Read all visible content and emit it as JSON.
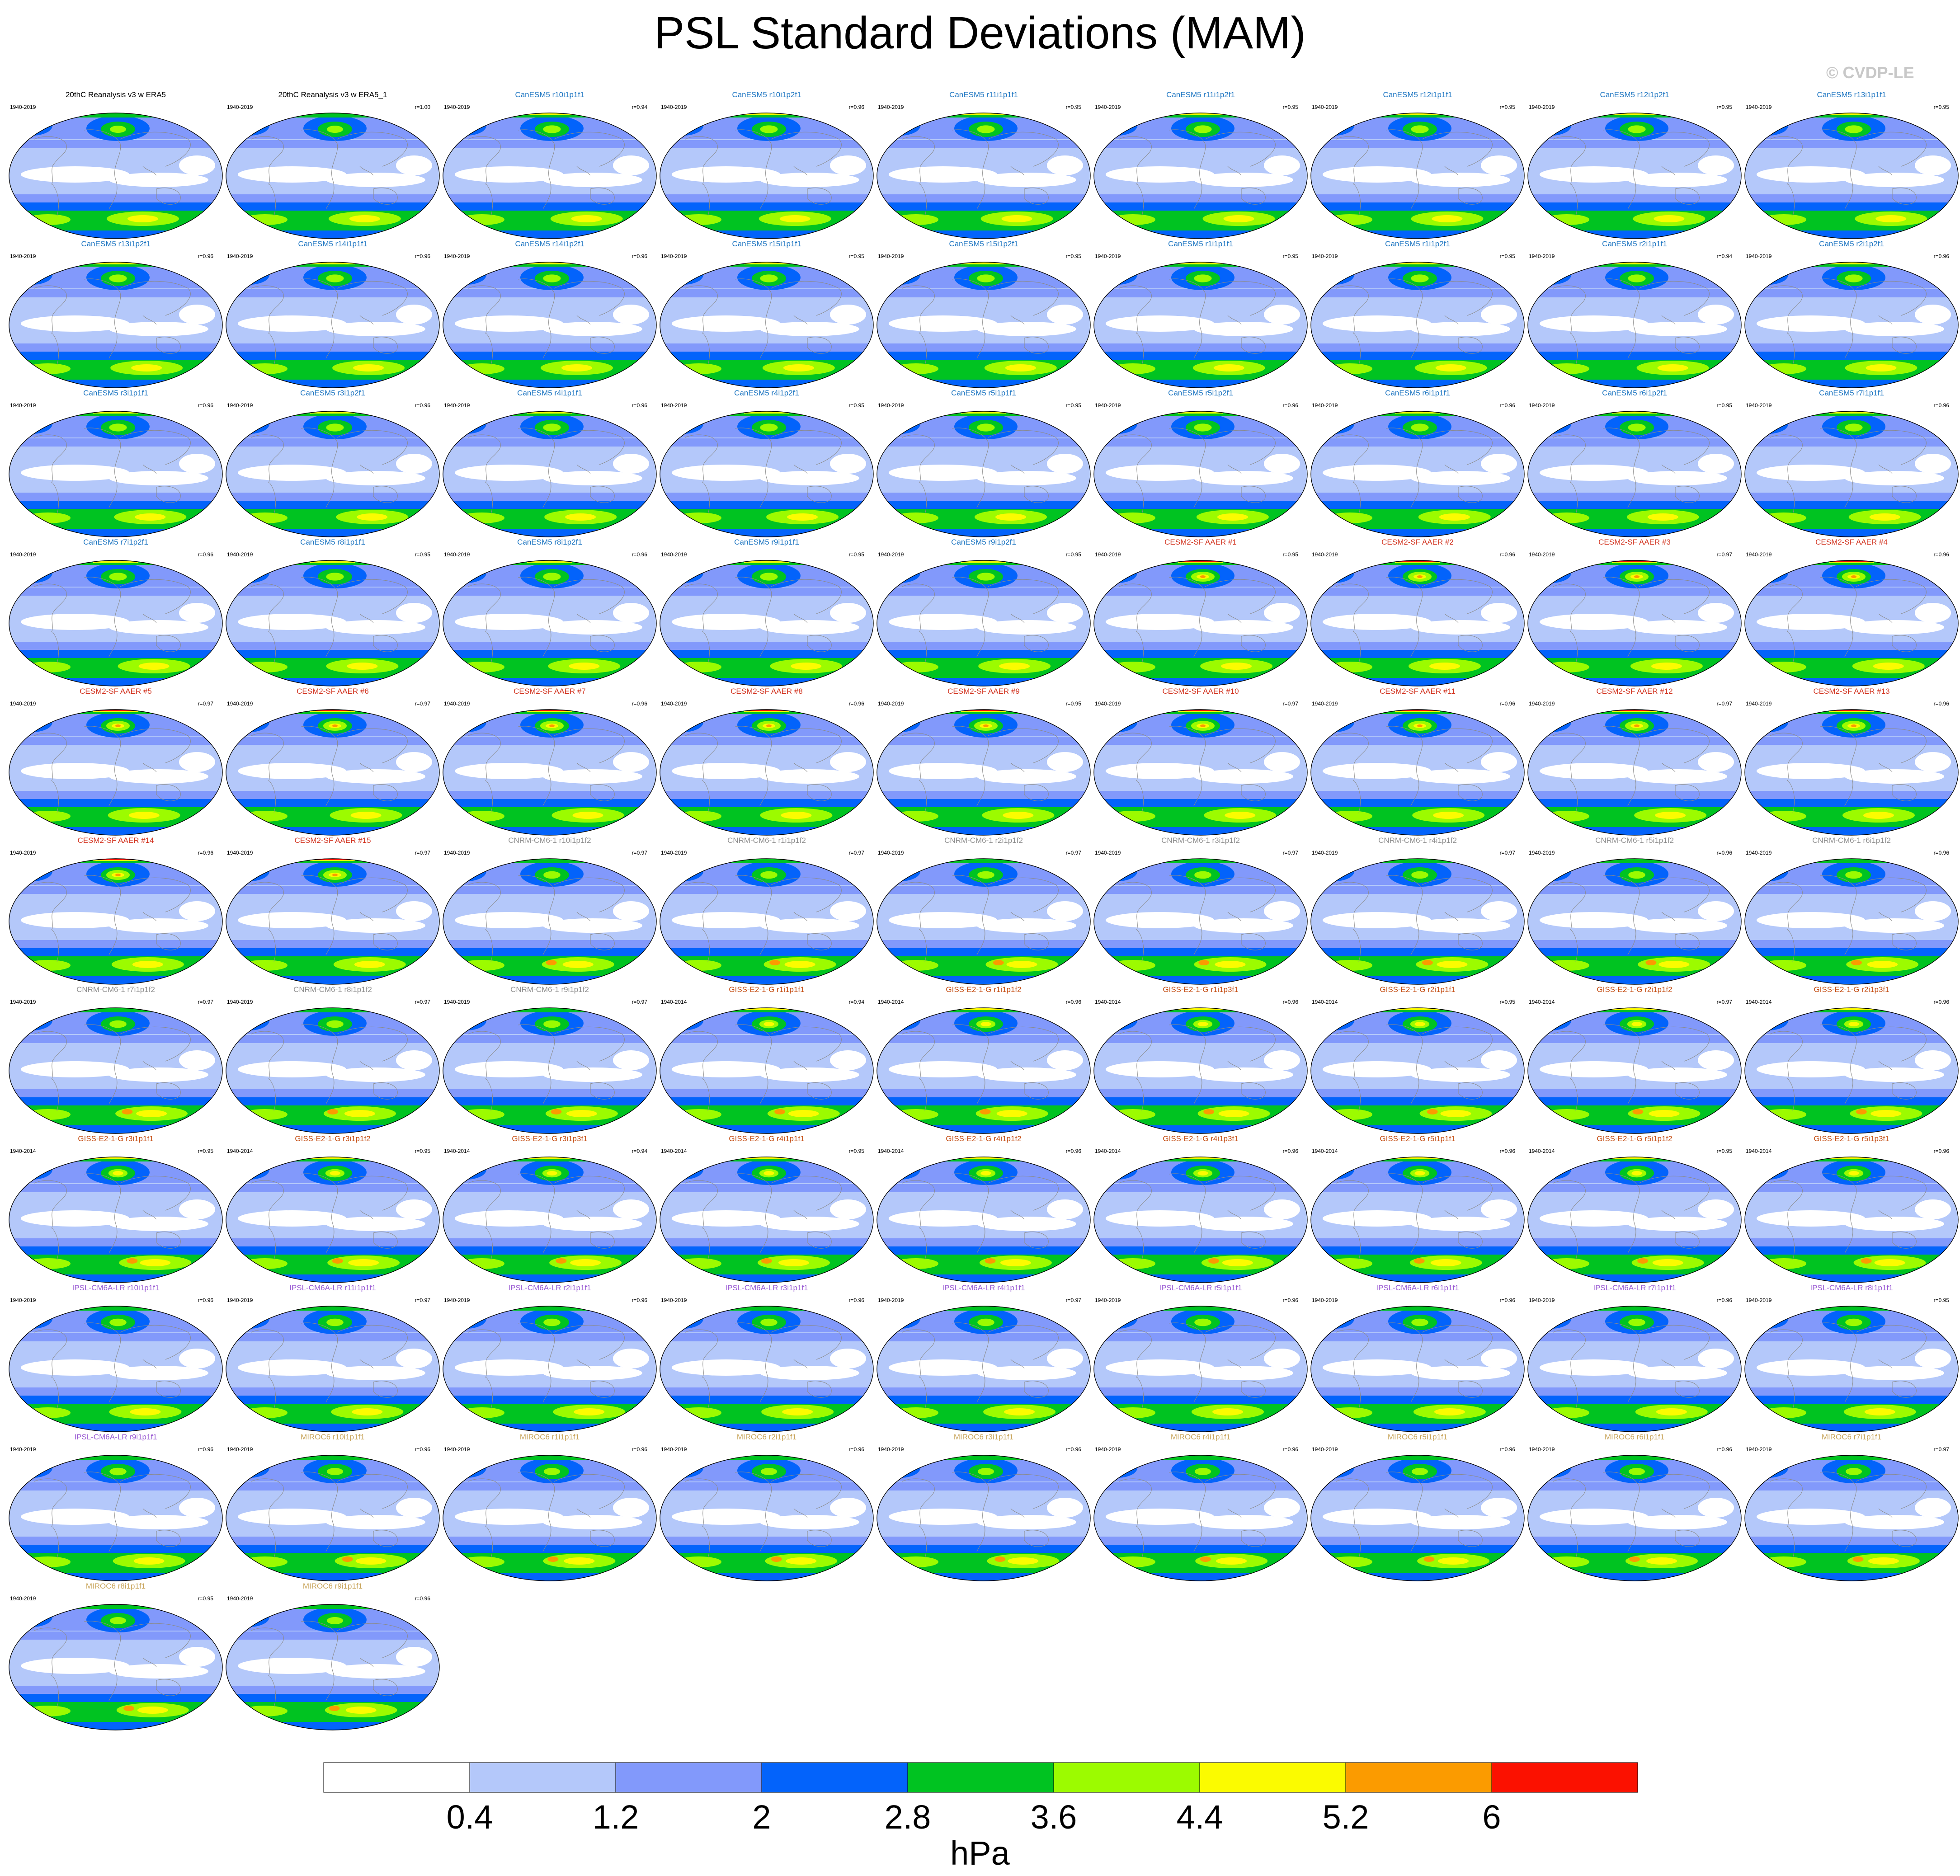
{
  "figure": {
    "title": "PSL Standard Deviations (MAM)",
    "copyright": "© CVDP-LE"
  },
  "colors": {
    "levels": [
      "#ffffff",
      "#b4c8fa",
      "#8299fb",
      "#0363fb",
      "#00c321",
      "#9cfb00",
      "#fbfb00",
      "#fb9b00",
      "#fb1100"
    ],
    "ocean_fallback": "#b4c8fa",
    "outline": "#8a8a8a",
    "family_colors": {
      "obs": "#000000",
      "CanESM5": "#1e76c2",
      "CESM2-SF": "#d2331f",
      "CNRM-CM6-1": "#8f8f8f",
      "GISS-E2-1-G": "#c44d12",
      "IPSL-CM6A-LR": "#9a5bd3",
      "MIROC6": "#c8a45a"
    }
  },
  "chart_data": {
    "type": "map-panels",
    "units": "hPa",
    "colorbar": {
      "ticks": [
        0.4,
        1.2,
        2,
        2.8,
        3.6,
        4.4,
        5.2,
        6
      ],
      "tick_labels": [
        "0.4",
        "1.2",
        "2",
        "2.8",
        "3.6",
        "4.4",
        "5.2",
        "6"
      ],
      "label": "hPa"
    },
    "panels": [
      {
        "title": "20thC Reanalysis v3 w ERA5",
        "family": "obs",
        "period": "1940-2019",
        "r": ""
      },
      {
        "title": "20thC Reanalysis v3 w ERA5_1",
        "family": "obs",
        "period": "1940-2019",
        "r": "r=1.00"
      },
      {
        "title": "CanESM5 r10i1p1f1",
        "family": "CanESM5",
        "period": "1940-2019",
        "r": "r=0.94"
      },
      {
        "title": "CanESM5 r10i1p2f1",
        "family": "CanESM5",
        "period": "1940-2019",
        "r": "r=0.96"
      },
      {
        "title": "CanESM5 r11i1p1f1",
        "family": "CanESM5",
        "period": "1940-2019",
        "r": "r=0.95"
      },
      {
        "title": "CanESM5 r11i1p2f1",
        "family": "CanESM5",
        "period": "1940-2019",
        "r": "r=0.95"
      },
      {
        "title": "CanESM5 r12i1p1f1",
        "family": "CanESM5",
        "period": "1940-2019",
        "r": "r=0.95"
      },
      {
        "title": "CanESM5 r12i1p2f1",
        "family": "CanESM5",
        "period": "1940-2019",
        "r": "r=0.95"
      },
      {
        "title": "CanESM5 r13i1p1f1",
        "family": "CanESM5",
        "period": "1940-2019",
        "r": "r=0.95"
      },
      {
        "title": "CanESM5 r13i1p2f1",
        "family": "CanESM5",
        "period": "1940-2019",
        "r": "r=0.96"
      },
      {
        "title": "CanESM5 r14i1p1f1",
        "family": "CanESM5",
        "period": "1940-2019",
        "r": "r=0.96"
      },
      {
        "title": "CanESM5 r14i1p2f1",
        "family": "CanESM5",
        "period": "1940-2019",
        "r": "r=0.96"
      },
      {
        "title": "CanESM5 r15i1p1f1",
        "family": "CanESM5",
        "period": "1940-2019",
        "r": "r=0.95"
      },
      {
        "title": "CanESM5 r15i1p2f1",
        "family": "CanESM5",
        "period": "1940-2019",
        "r": "r=0.95"
      },
      {
        "title": "CanESM5 r1i1p1f1",
        "family": "CanESM5",
        "period": "1940-2019",
        "r": "r=0.95"
      },
      {
        "title": "CanESM5 r1i1p2f1",
        "family": "CanESM5",
        "period": "1940-2019",
        "r": "r=0.95"
      },
      {
        "title": "CanESM5 r2i1p1f1",
        "family": "CanESM5",
        "period": "1940-2019",
        "r": "r=0.94"
      },
      {
        "title": "CanESM5 r2i1p2f1",
        "family": "CanESM5",
        "period": "1940-2019",
        "r": "r=0.96"
      },
      {
        "title": "CanESM5 r3i1p1f1",
        "family": "CanESM5",
        "period": "1940-2019",
        "r": "r=0.96"
      },
      {
        "title": "CanESM5 r3i1p2f1",
        "family": "CanESM5",
        "period": "1940-2019",
        "r": "r=0.96"
      },
      {
        "title": "CanESM5 r4i1p1f1",
        "family": "CanESM5",
        "period": "1940-2019",
        "r": "r=0.96"
      },
      {
        "title": "CanESM5 r4i1p2f1",
        "family": "CanESM5",
        "period": "1940-2019",
        "r": "r=0.95"
      },
      {
        "title": "CanESM5 r5i1p1f1",
        "family": "CanESM5",
        "period": "1940-2019",
        "r": "r=0.95"
      },
      {
        "title": "CanESM5 r5i1p2f1",
        "family": "CanESM5",
        "period": "1940-2019",
        "r": "r=0.96"
      },
      {
        "title": "CanESM5 r6i1p1f1",
        "family": "CanESM5",
        "period": "1940-2019",
        "r": "r=0.96"
      },
      {
        "title": "CanESM5 r6i1p2f1",
        "family": "CanESM5",
        "period": "1940-2019",
        "r": "r=0.95"
      },
      {
        "title": "CanESM5 r7i1p1f1",
        "family": "CanESM5",
        "period": "1940-2019",
        "r": "r=0.96"
      },
      {
        "title": "CanESM5 r7i1p2f1",
        "family": "CanESM5",
        "period": "1940-2019",
        "r": "r=0.96"
      },
      {
        "title": "CanESM5 r8i1p1f1",
        "family": "CanESM5",
        "period": "1940-2019",
        "r": "r=0.95"
      },
      {
        "title": "CanESM5 r8i1p2f1",
        "family": "CanESM5",
        "period": "1940-2019",
        "r": "r=0.96"
      },
      {
        "title": "CanESM5 r9i1p1f1",
        "family": "CanESM5",
        "period": "1940-2019",
        "r": "r=0.95"
      },
      {
        "title": "CanESM5 r9i1p2f1",
        "family": "CanESM5",
        "period": "1940-2019",
        "r": "r=0.95"
      },
      {
        "title": "CESM2-SF AAER #1",
        "family": "CESM2-SF",
        "period": "1940-2019",
        "r": "r=0.95"
      },
      {
        "title": "CESM2-SF AAER #2",
        "family": "CESM2-SF",
        "period": "1940-2019",
        "r": "r=0.96"
      },
      {
        "title": "CESM2-SF AAER #3",
        "family": "CESM2-SF",
        "period": "1940-2019",
        "r": "r=0.97"
      },
      {
        "title": "CESM2-SF AAER #4",
        "family": "CESM2-SF",
        "period": "1940-2019",
        "r": "r=0.96"
      },
      {
        "title": "CESM2-SF AAER #5",
        "family": "CESM2-SF",
        "period": "1940-2019",
        "r": "r=0.97"
      },
      {
        "title": "CESM2-SF AAER #6",
        "family": "CESM2-SF",
        "period": "1940-2019",
        "r": "r=0.97"
      },
      {
        "title": "CESM2-SF AAER #7",
        "family": "CESM2-SF",
        "period": "1940-2019",
        "r": "r=0.96"
      },
      {
        "title": "CESM2-SF AAER #8",
        "family": "CESM2-SF",
        "period": "1940-2019",
        "r": "r=0.96"
      },
      {
        "title": "CESM2-SF AAER #9",
        "family": "CESM2-SF",
        "period": "1940-2019",
        "r": "r=0.95"
      },
      {
        "title": "CESM2-SF AAER #10",
        "family": "CESM2-SF",
        "period": "1940-2019",
        "r": "r=0.97"
      },
      {
        "title": "CESM2-SF AAER #11",
        "family": "CESM2-SF",
        "period": "1940-2019",
        "r": "r=0.96"
      },
      {
        "title": "CESM2-SF AAER #12",
        "family": "CESM2-SF",
        "period": "1940-2019",
        "r": "r=0.97"
      },
      {
        "title": "CESM2-SF AAER #13",
        "family": "CESM2-SF",
        "period": "1940-2019",
        "r": "r=0.96"
      },
      {
        "title": "CESM2-SF AAER #14",
        "family": "CESM2-SF",
        "period": "1940-2019",
        "r": "r=0.96"
      },
      {
        "title": "CESM2-SF AAER #15",
        "family": "CESM2-SF",
        "period": "1940-2019",
        "r": "r=0.97"
      },
      {
        "title": "CNRM-CM6-1 r10i1p1f2",
        "family": "CNRM-CM6-1",
        "period": "1940-2019",
        "r": "r=0.97"
      },
      {
        "title": "CNRM-CM6-1 r1i1p1f2",
        "family": "CNRM-CM6-1",
        "period": "1940-2019",
        "r": "r=0.97"
      },
      {
        "title": "CNRM-CM6-1 r2i1p1f2",
        "family": "CNRM-CM6-1",
        "period": "1940-2019",
        "r": "r=0.97"
      },
      {
        "title": "CNRM-CM6-1 r3i1p1f2",
        "family": "CNRM-CM6-1",
        "period": "1940-2019",
        "r": "r=0.97"
      },
      {
        "title": "CNRM-CM6-1 r4i1p1f2",
        "family": "CNRM-CM6-1",
        "period": "1940-2019",
        "r": "r=0.97"
      },
      {
        "title": "CNRM-CM6-1 r5i1p1f2",
        "family": "CNRM-CM6-1",
        "period": "1940-2019",
        "r": "r=0.96"
      },
      {
        "title": "CNRM-CM6-1 r6i1p1f2",
        "family": "CNRM-CM6-1",
        "period": "1940-2019",
        "r": "r=0.96"
      },
      {
        "title": "CNRM-CM6-1 r7i1p1f2",
        "family": "CNRM-CM6-1",
        "period": "1940-2019",
        "r": "r=0.97"
      },
      {
        "title": "CNRM-CM6-1 r8i1p1f2",
        "family": "CNRM-CM6-1",
        "period": "1940-2019",
        "r": "r=0.97"
      },
      {
        "title": "CNRM-CM6-1 r9i1p1f2",
        "family": "CNRM-CM6-1",
        "period": "1940-2019",
        "r": "r=0.97"
      },
      {
        "title": "GISS-E2-1-G r1i1p1f1",
        "family": "GISS-E2-1-G",
        "period": "1940-2014",
        "r": "r=0.94"
      },
      {
        "title": "GISS-E2-1-G r1i1p1f2",
        "family": "GISS-E2-1-G",
        "period": "1940-2014",
        "r": "r=0.96"
      },
      {
        "title": "GISS-E2-1-G r1i1p3f1",
        "family": "GISS-E2-1-G",
        "period": "1940-2014",
        "r": "r=0.96"
      },
      {
        "title": "GISS-E2-1-G r2i1p1f1",
        "family": "GISS-E2-1-G",
        "period": "1940-2014",
        "r": "r=0.95"
      },
      {
        "title": "GISS-E2-1-G r2i1p1f2",
        "family": "GISS-E2-1-G",
        "period": "1940-2014",
        "r": "r=0.97"
      },
      {
        "title": "GISS-E2-1-G r2i1p3f1",
        "family": "GISS-E2-1-G",
        "period": "1940-2014",
        "r": "r=0.96"
      },
      {
        "title": "GISS-E2-1-G r3i1p1f1",
        "family": "GISS-E2-1-G",
        "period": "1940-2014",
        "r": "r=0.95"
      },
      {
        "title": "GISS-E2-1-G r3i1p1f2",
        "family": "GISS-E2-1-G",
        "period": "1940-2014",
        "r": "r=0.95"
      },
      {
        "title": "GISS-E2-1-G r3i1p3f1",
        "family": "GISS-E2-1-G",
        "period": "1940-2014",
        "r": "r=0.94"
      },
      {
        "title": "GISS-E2-1-G r4i1p1f1",
        "family": "GISS-E2-1-G",
        "period": "1940-2014",
        "r": "r=0.95"
      },
      {
        "title": "GISS-E2-1-G r4i1p1f2",
        "family": "GISS-E2-1-G",
        "period": "1940-2014",
        "r": "r=0.96"
      },
      {
        "title": "GISS-E2-1-G r4i1p3f1",
        "family": "GISS-E2-1-G",
        "period": "1940-2014",
        "r": "r=0.96"
      },
      {
        "title": "GISS-E2-1-G r5i1p1f1",
        "family": "GISS-E2-1-G",
        "period": "1940-2014",
        "r": "r=0.96"
      },
      {
        "title": "GISS-E2-1-G r5i1p1f2",
        "family": "GISS-E2-1-G",
        "period": "1940-2014",
        "r": "r=0.95"
      },
      {
        "title": "GISS-E2-1-G r5i1p3f1",
        "family": "GISS-E2-1-G",
        "period": "1940-2014",
        "r": "r=0.96"
      },
      {
        "title": "IPSL-CM6A-LR r10i1p1f1",
        "family": "IPSL-CM6A-LR",
        "period": "1940-2019",
        "r": "r=0.96"
      },
      {
        "title": "IPSL-CM6A-LR r11i1p1f1",
        "family": "IPSL-CM6A-LR",
        "period": "1940-2019",
        "r": "r=0.97"
      },
      {
        "title": "IPSL-CM6A-LR r2i1p1f1",
        "family": "IPSL-CM6A-LR",
        "period": "1940-2019",
        "r": "r=0.96"
      },
      {
        "title": "IPSL-CM6A-LR r3i1p1f1",
        "family": "IPSL-CM6A-LR",
        "period": "1940-2019",
        "r": "r=0.96"
      },
      {
        "title": "IPSL-CM6A-LR r4i1p1f1",
        "family": "IPSL-CM6A-LR",
        "period": "1940-2019",
        "r": "r=0.97"
      },
      {
        "title": "IPSL-CM6A-LR r5i1p1f1",
        "family": "IPSL-CM6A-LR",
        "period": "1940-2019",
        "r": "r=0.96"
      },
      {
        "title": "IPSL-CM6A-LR r6i1p1f1",
        "family": "IPSL-CM6A-LR",
        "period": "1940-2019",
        "r": "r=0.96"
      },
      {
        "title": "IPSL-CM6A-LR r7i1p1f1",
        "family": "IPSL-CM6A-LR",
        "period": "1940-2019",
        "r": "r=0.96"
      },
      {
        "title": "IPSL-CM6A-LR r8i1p1f1",
        "family": "IPSL-CM6A-LR",
        "period": "1940-2019",
        "r": "r=0.95"
      },
      {
        "title": "IPSL-CM6A-LR r9i1p1f1",
        "family": "IPSL-CM6A-LR",
        "period": "1940-2019",
        "r": "r=0.96"
      },
      {
        "title": "MIROC6 r10i1p1f1",
        "family": "MIROC6",
        "period": "1940-2019",
        "r": "r=0.96"
      },
      {
        "title": "MIROC6 r1i1p1f1",
        "family": "MIROC6",
        "period": "1940-2019",
        "r": "r=0.96"
      },
      {
        "title": "MIROC6 r2i1p1f1",
        "family": "MIROC6",
        "period": "1940-2019",
        "r": "r=0.96"
      },
      {
        "title": "MIROC6 r3i1p1f1",
        "family": "MIROC6",
        "period": "1940-2019",
        "r": "r=0.96"
      },
      {
        "title": "MIROC6 r4i1p1f1",
        "family": "MIROC6",
        "period": "1940-2019",
        "r": "r=0.96"
      },
      {
        "title": "MIROC6 r5i1p1f1",
        "family": "MIROC6",
        "period": "1940-2019",
        "r": "r=0.96"
      },
      {
        "title": "MIROC6 r6i1p1f1",
        "family": "MIROC6",
        "period": "1940-2019",
        "r": "r=0.96"
      },
      {
        "title": "MIROC6 r7i1p1f1",
        "family": "MIROC6",
        "period": "1940-2019",
        "r": "r=0.97"
      },
      {
        "title": "MIROC6 r8i1p1f1",
        "family": "MIROC6",
        "period": "1940-2019",
        "r": "r=0.95"
      },
      {
        "title": "MIROC6 r9i1p1f1",
        "family": "MIROC6",
        "period": "1940-2019",
        "r": "r=0.96"
      }
    ]
  }
}
